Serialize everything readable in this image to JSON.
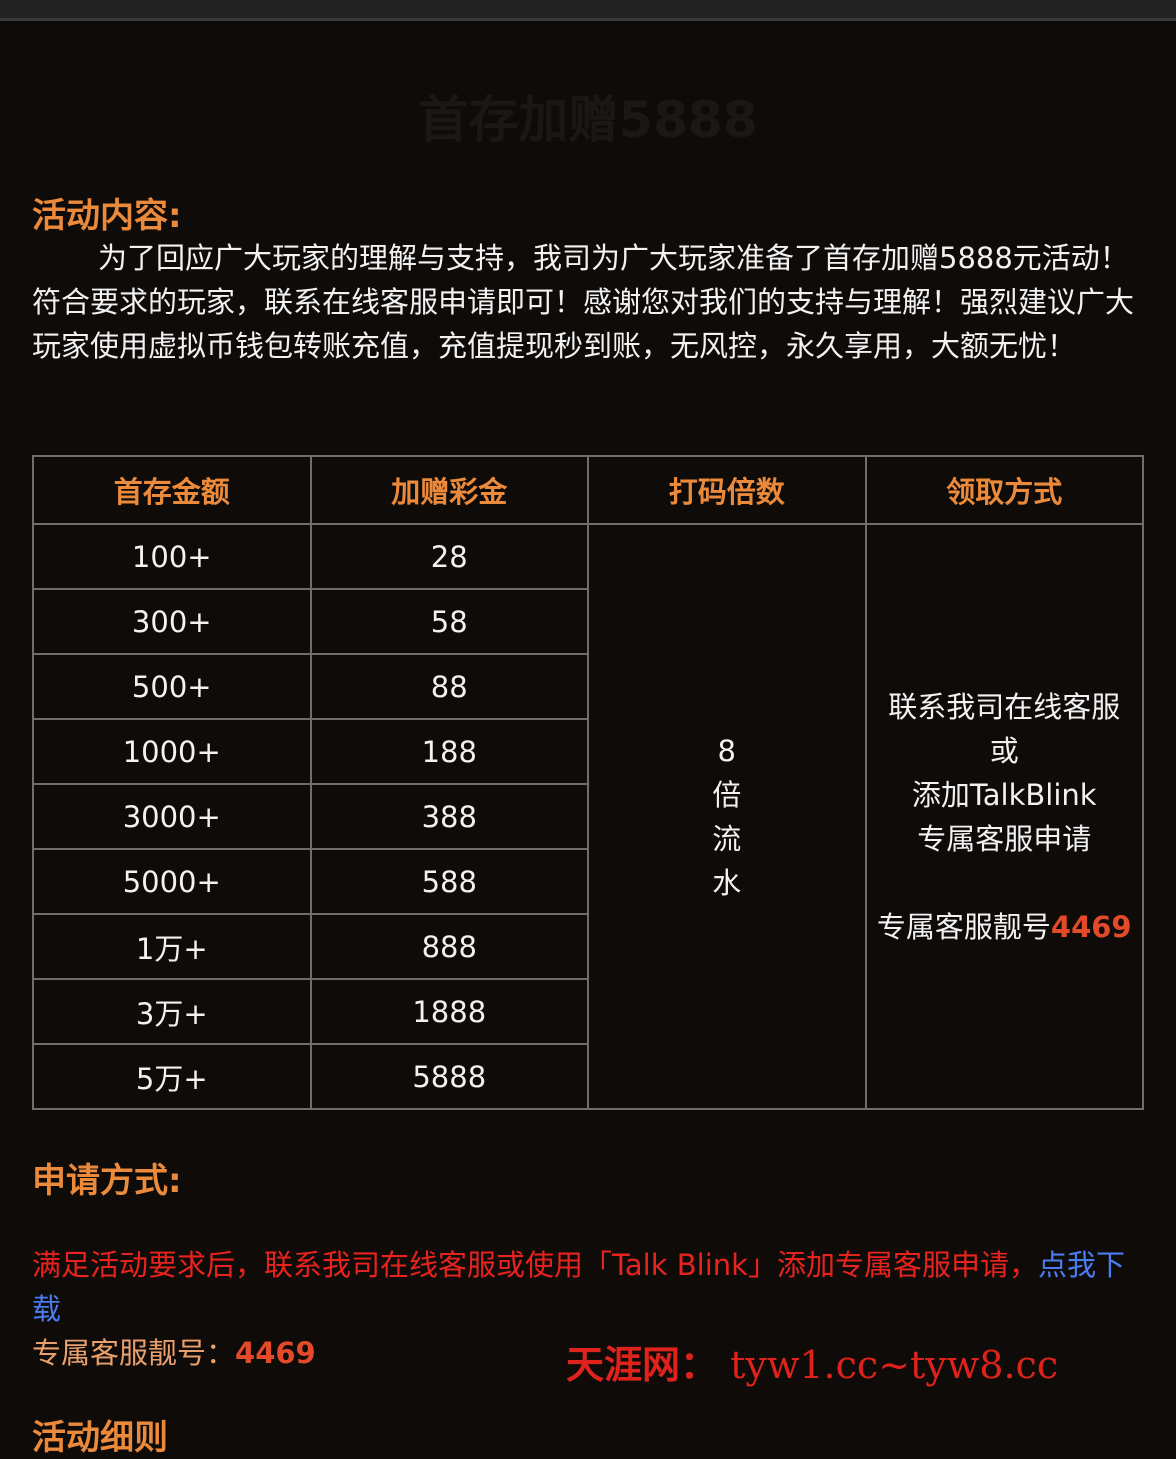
{
  "title": "首存加赠5888",
  "content": {
    "heading": "活动内容:",
    "text": "为了回应广大玩家的理解与支持，我司为广大玩家准备了首存加赠5888元活动！符合要求的玩家，联系在线客服申请即可！感谢您对我们的支持与理解！强烈建议广大玩家使用虚拟币钱包转账充值，充值提现秒到账，无风控，永久享用，大额无忧！"
  },
  "table": {
    "headers": [
      "首存金额",
      "加赠彩金",
      "打码倍数",
      "领取方式"
    ],
    "rows": [
      [
        "100+",
        "28"
      ],
      [
        "300+",
        "58"
      ],
      [
        "500+",
        "88"
      ],
      [
        "1000+",
        "188"
      ],
      [
        "3000+",
        "388"
      ],
      [
        "5000+",
        "588"
      ],
      [
        "1万+",
        "888"
      ],
      [
        "3万+",
        "1888"
      ],
      [
        "5万+",
        "5888"
      ]
    ],
    "wagering": [
      "8",
      "倍",
      "流",
      "水"
    ],
    "claim": {
      "lines": [
        "联系我司在线客服",
        "或",
        "添加TalkBlink",
        "专属客服申请"
      ],
      "number_label": "专属客服靓号",
      "number": "4469"
    }
  },
  "apply": {
    "heading": "申请方式:",
    "text": "满足活动要求后，联系我司在线客服或使用「Talk Blink」添加专属客服申请，",
    "link": "点我下载",
    "hotline_label": "专属客服靓号：",
    "hotline_number": "4469"
  },
  "watermark": {
    "brand": "天涯网：",
    "domains": "tyw1.cc~tyw8.cc"
  },
  "next_heading": "活动细则"
}
